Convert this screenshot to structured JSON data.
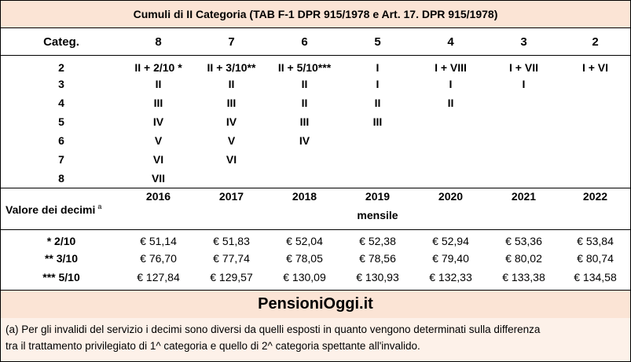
{
  "title": "Cumuli di II Categoria (TAB F-1 DPR 915/1978 e Art. 17. DPR 915/1978)",
  "grid": {
    "header": [
      "Categ.",
      "8",
      "7",
      "6",
      "5",
      "4",
      "3",
      "2"
    ],
    "rows": [
      [
        "2",
        "II + 2/10 *",
        "II + 3/10**",
        "II + 5/10***",
        "I",
        "I + VIII",
        "I + VII",
        "I + VI"
      ],
      [
        "3",
        "II",
        "II",
        "II",
        "I",
        "I",
        "I",
        ""
      ],
      [
        "4",
        "III",
        "III",
        "II",
        "II",
        "II",
        "",
        ""
      ],
      [
        "5",
        "IV",
        "IV",
        "III",
        "III",
        "",
        "",
        ""
      ],
      [
        "6",
        "V",
        "V",
        "IV",
        "",
        "",
        "",
        ""
      ],
      [
        "7",
        "VI",
        "VI",
        "",
        "",
        "",
        "",
        ""
      ],
      [
        "8",
        "VII",
        "",
        "",
        "",
        "",
        "",
        ""
      ]
    ]
  },
  "values_table": {
    "label": "Valore dei decimi",
    "label_sup": "a",
    "years": [
      "2016",
      "2017",
      "2018",
      "2019",
      "2020",
      "2021",
      "2022"
    ],
    "monthly_note": "mensile",
    "rows": [
      [
        "* 2/10",
        "€ 51,14",
        "€ 51,83",
        "€ 52,04",
        "€ 52,38",
        "€ 52,94",
        "€ 53,36",
        "€ 53,84"
      ],
      [
        "** 3/10",
        "€ 76,70",
        "€ 77,74",
        "€ 78,05",
        "€ 78,56",
        "€ 79,40",
        "€ 80,02",
        "€ 80,74"
      ],
      [
        "*** 5/10",
        "€ 127,84",
        "€ 129,57",
        "€ 130,09",
        "€ 130,93",
        "€ 132,33",
        "€ 133,38",
        "€ 134,58"
      ]
    ]
  },
  "brand": "PensioniOggi.it",
  "note_line1": "(a) Per gli invalidi del servizio i decimi sono diversi da quelli esposti in quanto vengono determinati sulla differenza",
  "note_line2": "tra il trattamento privilegiato di 1^ categoria e quello di 2^ categoria spettante all'invalido."
}
